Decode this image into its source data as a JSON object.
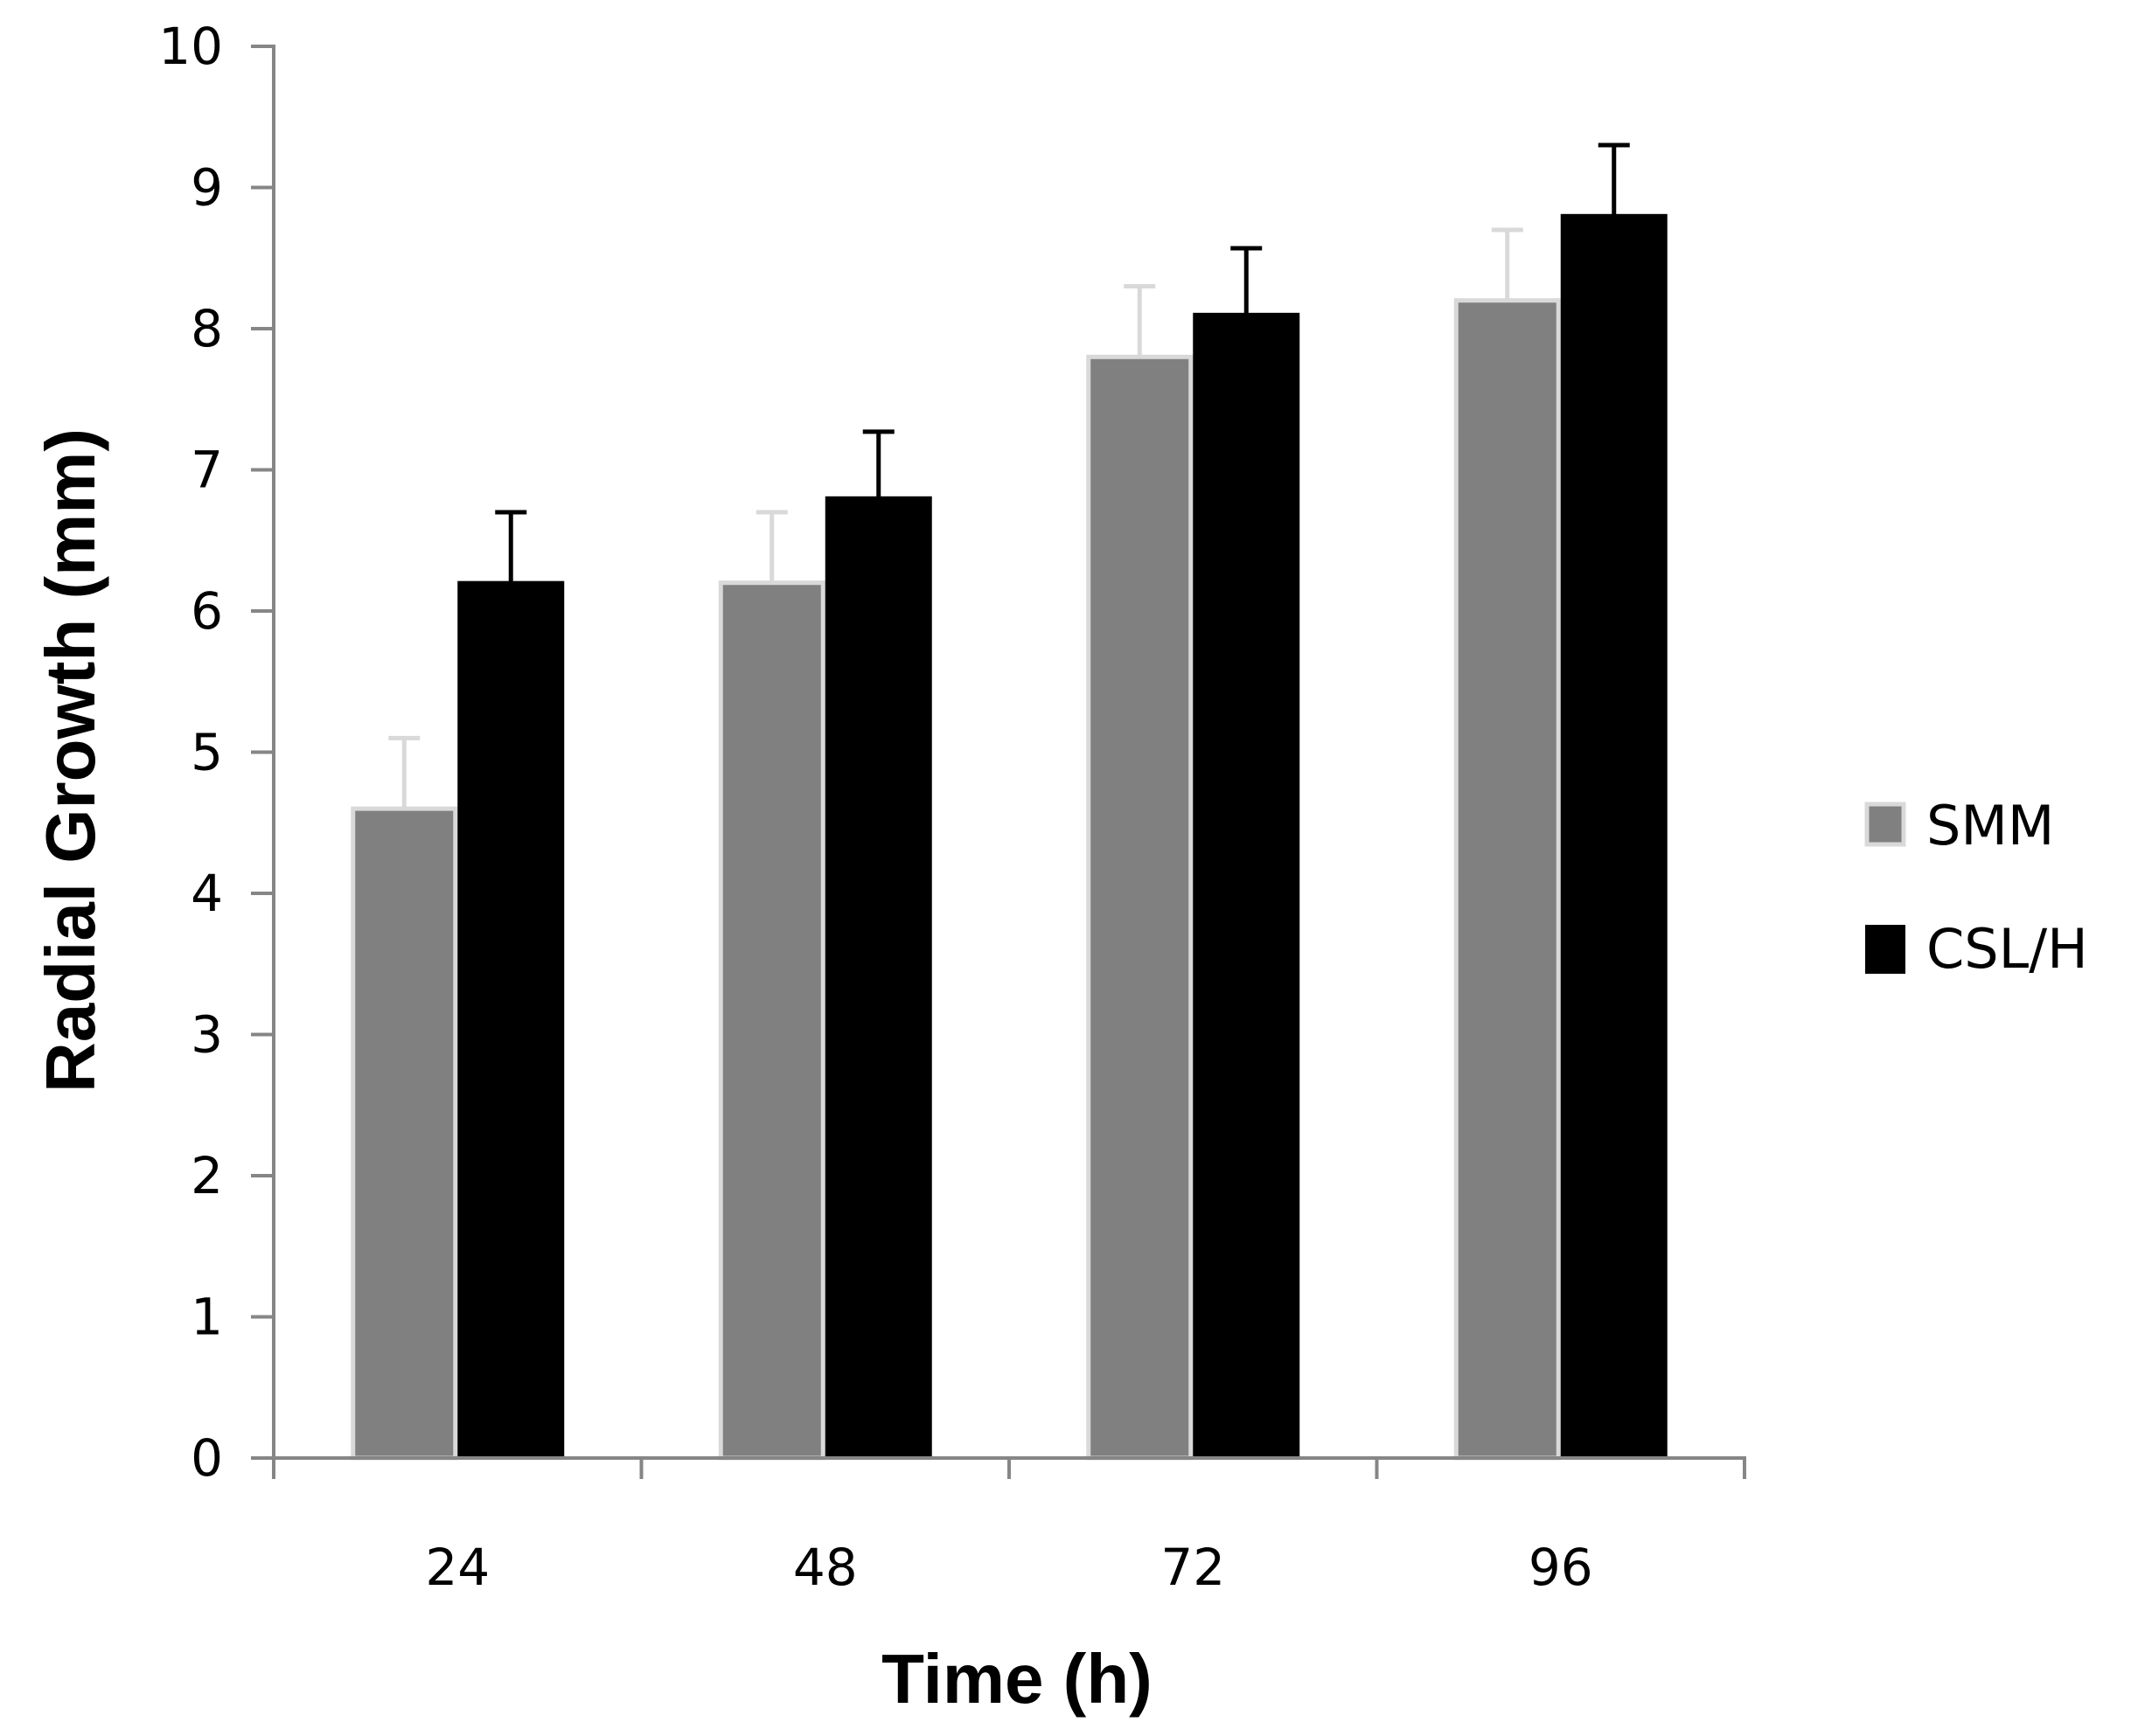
{
  "chart_data": {
    "type": "bar",
    "title": "",
    "xlabel": "Time (h)",
    "ylabel": "Radial Growth (mm)",
    "categories": [
      "24",
      "48",
      "72",
      "96"
    ],
    "ylim": [
      0,
      10
    ],
    "yticks": [
      "0",
      "1",
      "2",
      "3",
      "4",
      "5",
      "6",
      "7",
      "8",
      "9",
      "10"
    ],
    "grid": false,
    "legend_position": "right",
    "series": [
      {
        "name": "SMM",
        "values": [
          4.6,
          6.2,
          7.8,
          8.2
        ],
        "errors": [
          0.5,
          0.5,
          0.5,
          0.5
        ],
        "color": "#808080",
        "edge_color": "#d9d9d9"
      },
      {
        "name": "CSL/H",
        "values": [
          6.2,
          6.8,
          8.1,
          8.8
        ],
        "errors": [
          0.5,
          0.47,
          0.47,
          0.5
        ],
        "color": "#000000",
        "edge_color": "#000000"
      }
    ]
  },
  "colors": {
    "axis": "#868686",
    "smm_error_bar": "#d9d9d9",
    "cslh_error_bar": "#000000"
  }
}
